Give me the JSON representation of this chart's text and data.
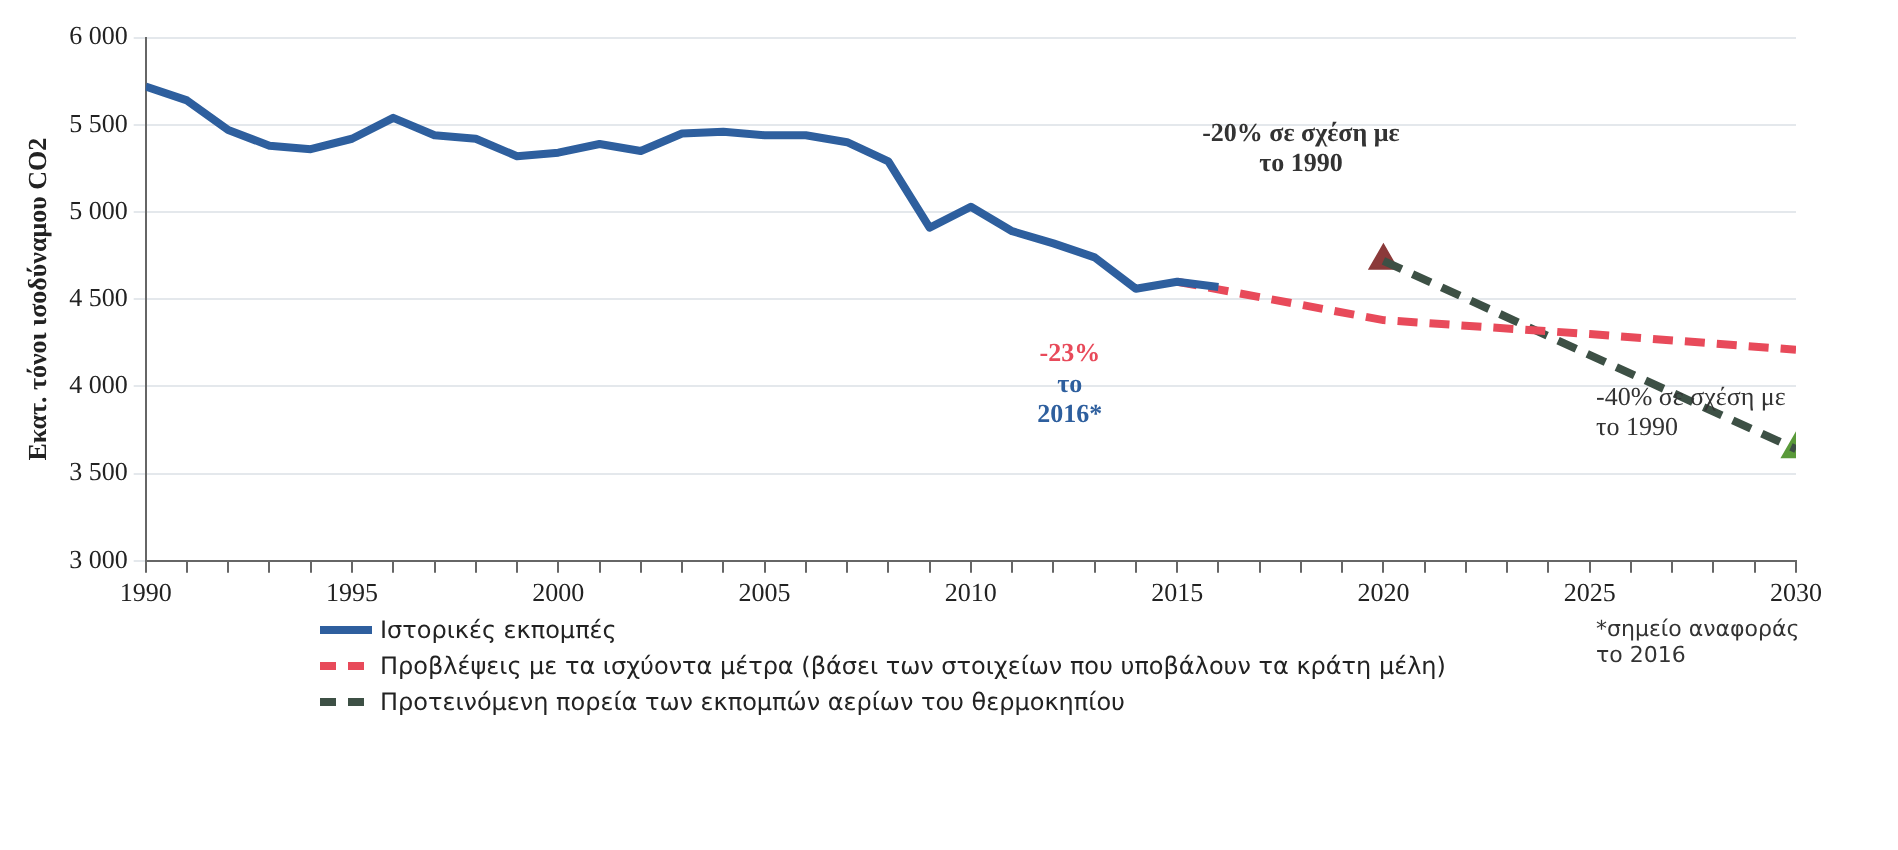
{
  "chart_data": {
    "type": "line",
    "ylabel": "Εκατ. τόνοι ισοδύναμου CO2",
    "xlim": [
      1990,
      2030
    ],
    "xticks": [
      1990,
      {
        "value": 1991,
        "label": null
      },
      {
        "value": 1992,
        "label": null
      },
      {
        "value": 1993,
        "label": null
      },
      {
        "value": 1994,
        "label": null
      },
      1995,
      {
        "value": 1996,
        "label": null
      },
      {
        "value": 1997,
        "label": null
      },
      {
        "value": 1998,
        "label": null
      },
      {
        "value": 1999,
        "label": null
      },
      2000,
      {
        "value": 2001,
        "label": null
      },
      {
        "value": 2002,
        "label": null
      },
      {
        "value": 2003,
        "label": null
      },
      {
        "value": 2004,
        "label": null
      },
      2005,
      {
        "value": 2006,
        "label": null
      },
      {
        "value": 2007,
        "label": null
      },
      {
        "value": 2008,
        "label": null
      },
      {
        "value": 2009,
        "label": null
      },
      2010,
      {
        "value": 2011,
        "label": null
      },
      {
        "value": 2012,
        "label": null
      },
      {
        "value": 2013,
        "label": null
      },
      {
        "value": 2014,
        "label": null
      },
      2015,
      {
        "value": 2016,
        "label": null
      },
      {
        "value": 2017,
        "label": null
      },
      {
        "value": 2018,
        "label": null
      },
      {
        "value": 2019,
        "label": null
      },
      2020,
      {
        "value": 2021,
        "label": null
      },
      {
        "value": 2022,
        "label": null
      },
      {
        "value": 2023,
        "label": null
      },
      {
        "value": 2024,
        "label": null
      },
      2025,
      {
        "value": 2026,
        "label": null
      },
      {
        "value": 2027,
        "label": null
      },
      {
        "value": 2028,
        "label": null
      },
      {
        "value": 2029,
        "label": null
      },
      2030
    ],
    "ylim": [
      3000,
      6000
    ],
    "yticks": [
      {
        "value": 3000,
        "label": "3 000"
      },
      {
        "value": 3500,
        "label": "3 500"
      },
      {
        "value": 4000,
        "label": "4 000"
      },
      {
        "value": 4500,
        "label": "4 500"
      },
      {
        "value": 5000,
        "label": "5 000"
      },
      {
        "value": 5500,
        "label": "5 500"
      },
      {
        "value": 6000,
        "label": "6 000"
      }
    ],
    "grid": "y",
    "legend": "bottom",
    "marker": "none",
    "series": [
      {
        "name": "Ιστορικές εκπομπές",
        "color": "#2e5f9e",
        "line_style": "solid",
        "x": [
          1990,
          1991,
          1992,
          1993,
          1994,
          1995,
          1996,
          1997,
          1998,
          1999,
          2000,
          2001,
          2002,
          2003,
          2004,
          2005,
          2006,
          2007,
          2008,
          2009,
          2010,
          2011,
          2012,
          2013,
          2014,
          2015,
          2016
        ],
        "values": [
          5720,
          5640,
          5470,
          5380,
          5360,
          5420,
          5540,
          5440,
          5420,
          5320,
          5340,
          5390,
          5350,
          5450,
          5460,
          5440,
          5440,
          5400,
          5290,
          4910,
          5030,
          4890,
          4820,
          4740,
          4560,
          4600,
          4570
        ]
      },
      {
        "name": "Προβλέψεις με τα ισχύοντα μέτρα (βάσει των στοιχείων που υποβάλουν τα κράτη μέλη)",
        "color": "#e84a5a",
        "line_style": "dashed",
        "x": [
          2015,
          2020,
          2025,
          2030
        ],
        "values": [
          4600,
          4380,
          4300,
          4210
        ]
      },
      {
        "name": "Προτεινόμενη πορεία των εκπομπών αερίων του θερμοκηπίου",
        "color": "#3d5045",
        "line_style": "dashed",
        "x": [
          2020,
          2030
        ],
        "values": [
          4720,
          3640
        ]
      },
      {
        "type": "scatter",
        "marker": "triangle",
        "colors": [
          "#8b3a3a",
          "#5a9a3a"
        ],
        "x": [
          2020,
          2030
        ],
        "values": [
          4720,
          3640
        ]
      }
    ],
    "annotations": [
      "-20% σε σχέση με το 1990",
      {
        "text": "-40% σε σχέση με το 1990",
        "x": 2030,
        "y": 3640
      },
      "-23%",
      "το 2016*",
      "*σημείο αναφοράς το 2016"
    ]
  }
}
